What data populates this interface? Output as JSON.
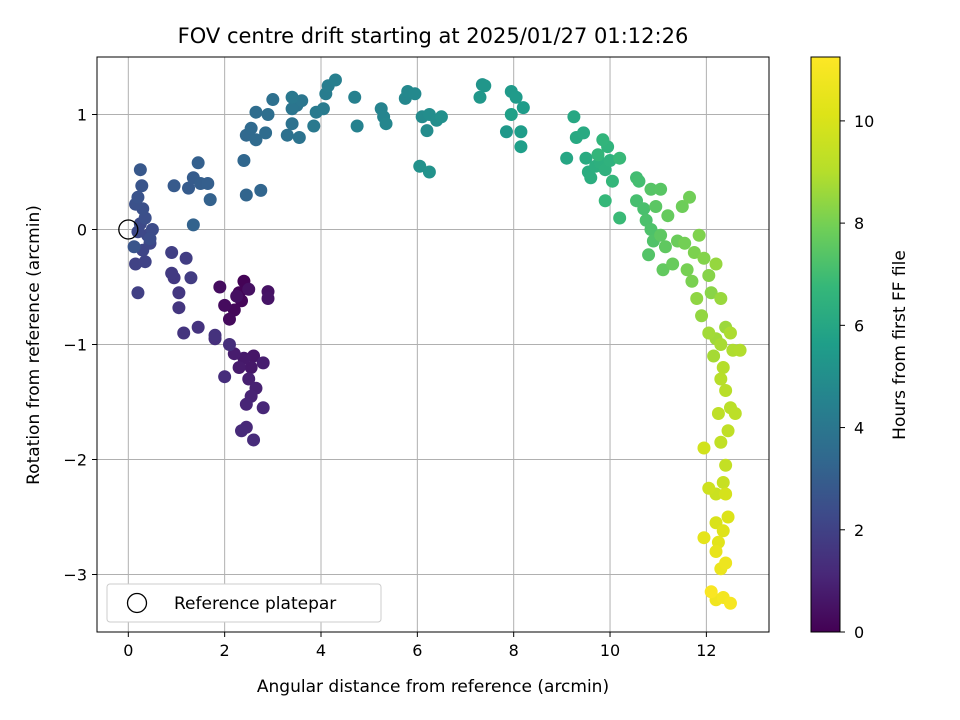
{
  "chart_data": {
    "type": "scatter",
    "title": "FOV centre drift starting at 2025/01/27 01:12:26",
    "xlabel": "Angular distance from reference (arcmin)",
    "ylabel": "Rotation from reference (arcmin)",
    "colorbar_label": "Hours from first FF file",
    "xlim": [
      -0.65,
      13.3
    ],
    "ylim": [
      -3.5,
      1.5
    ],
    "clim": [
      0,
      11.25
    ],
    "x_ticks": [
      0,
      2,
      4,
      6,
      8,
      10,
      12
    ],
    "y_ticks": [
      -3,
      -2,
      -1,
      0,
      1
    ],
    "colorbar_ticks": [
      0,
      2,
      4,
      6,
      8,
      10
    ],
    "grid": true,
    "colormap": "viridis",
    "legend": {
      "placement": "lower-left",
      "entries": [
        {
          "label": "Reference platepar",
          "marker": "open-circle"
        }
      ]
    },
    "reference_point": {
      "x": 0,
      "y": 0
    },
    "points": [
      {
        "x": 2.4,
        "y": -0.45,
        "t": 0.05
      },
      {
        "x": 2.3,
        "y": -0.55,
        "t": 0.1
      },
      {
        "x": 2.35,
        "y": -0.62,
        "t": 0.15
      },
      {
        "x": 2.2,
        "y": -0.7,
        "t": 0.2
      },
      {
        "x": 2.1,
        "y": -0.78,
        "t": 0.25
      },
      {
        "x": 2.0,
        "y": -0.66,
        "t": 0.3
      },
      {
        "x": 1.9,
        "y": -0.5,
        "t": 0.35
      },
      {
        "x": 2.25,
        "y": -0.58,
        "t": 0.4
      },
      {
        "x": 2.5,
        "y": -0.52,
        "t": 0.45
      },
      {
        "x": 2.9,
        "y": -0.54,
        "t": 0.5
      },
      {
        "x": 2.9,
        "y": -0.6,
        "t": 0.55
      },
      {
        "x": 2.6,
        "y": -1.1,
        "t": 0.6
      },
      {
        "x": 2.55,
        "y": -1.2,
        "t": 0.65
      },
      {
        "x": 2.4,
        "y": -1.12,
        "t": 0.7
      },
      {
        "x": 2.3,
        "y": -1.2,
        "t": 0.75
      },
      {
        "x": 2.2,
        "y": -1.08,
        "t": 0.8
      },
      {
        "x": 2.8,
        "y": -1.16,
        "t": 0.85
      },
      {
        "x": 2.5,
        "y": -1.3,
        "t": 0.9
      },
      {
        "x": 2.65,
        "y": -1.38,
        "t": 0.95
      },
      {
        "x": 2.55,
        "y": -1.45,
        "t": 1.0
      },
      {
        "x": 2.45,
        "y": -1.52,
        "t": 1.05
      },
      {
        "x": 2.8,
        "y": -1.55,
        "t": 1.1
      },
      {
        "x": 2.45,
        "y": -1.72,
        "t": 1.15
      },
      {
        "x": 2.35,
        "y": -1.75,
        "t": 1.2
      },
      {
        "x": 2.6,
        "y": -1.83,
        "t": 1.25
      },
      {
        "x": 2.0,
        "y": -1.28,
        "t": 1.3
      },
      {
        "x": 2.1,
        "y": -1.0,
        "t": 1.35
      },
      {
        "x": 1.8,
        "y": -0.95,
        "t": 1.4
      },
      {
        "x": 1.8,
        "y": -0.92,
        "t": 1.45
      },
      {
        "x": 1.45,
        "y": -0.85,
        "t": 1.5
      },
      {
        "x": 1.15,
        "y": -0.9,
        "t": 1.55
      },
      {
        "x": 1.05,
        "y": -0.68,
        "t": 1.6
      },
      {
        "x": 1.05,
        "y": -0.55,
        "t": 1.65
      },
      {
        "x": 0.95,
        "y": -0.42,
        "t": 1.7
      },
      {
        "x": 0.9,
        "y": -0.38,
        "t": 1.75
      },
      {
        "x": 1.3,
        "y": -0.42,
        "t": 1.8
      },
      {
        "x": 1.2,
        "y": -0.25,
        "t": 1.85
      },
      {
        "x": 0.9,
        "y": -0.2,
        "t": 1.9
      },
      {
        "x": 0.2,
        "y": -0.55,
        "t": 1.95
      },
      {
        "x": 0.15,
        "y": -0.3,
        "t": 2.0
      },
      {
        "x": 0.35,
        "y": -0.28,
        "t": 2.05
      },
      {
        "x": 0.3,
        "y": -0.18,
        "t": 2.1
      },
      {
        "x": 0.45,
        "y": -0.12,
        "t": 2.15
      },
      {
        "x": 0.4,
        "y": -0.05,
        "t": 2.2
      },
      {
        "x": 0.2,
        "y": -0.02,
        "t": 2.25
      },
      {
        "x": 0.25,
        "y": 0.05,
        "t": 2.3
      },
      {
        "x": 0.5,
        "y": 0.0,
        "t": 2.35
      },
      {
        "x": 0.45,
        "y": -0.08,
        "t": 2.4
      },
      {
        "x": 0.35,
        "y": 0.1,
        "t": 2.45
      },
      {
        "x": 0.3,
        "y": 0.18,
        "t": 2.5
      },
      {
        "x": 0.15,
        "y": 0.22,
        "t": 2.55
      },
      {
        "x": 0.2,
        "y": 0.28,
        "t": 2.6
      },
      {
        "x": 0.28,
        "y": 0.38,
        "t": 2.65
      },
      {
        "x": 0.12,
        "y": -0.15,
        "t": 2.7
      },
      {
        "x": 0.25,
        "y": 0.52,
        "t": 2.8
      },
      {
        "x": 0.95,
        "y": 0.38,
        "t": 2.85
      },
      {
        "x": 1.25,
        "y": 0.36,
        "t": 2.9
      },
      {
        "x": 1.35,
        "y": 0.45,
        "t": 2.95
      },
      {
        "x": 1.5,
        "y": 0.4,
        "t": 3.0
      },
      {
        "x": 1.65,
        "y": 0.4,
        "t": 3.05
      },
      {
        "x": 1.45,
        "y": 0.58,
        "t": 3.1
      },
      {
        "x": 1.7,
        "y": 0.26,
        "t": 3.15
      },
      {
        "x": 1.35,
        "y": 0.04,
        "t": 3.2
      },
      {
        "x": 2.45,
        "y": 0.3,
        "t": 3.25
      },
      {
        "x": 2.75,
        "y": 0.34,
        "t": 3.3
      },
      {
        "x": 2.4,
        "y": 0.6,
        "t": 3.35
      },
      {
        "x": 2.45,
        "y": 0.82,
        "t": 3.4
      },
      {
        "x": 2.55,
        "y": 0.88,
        "t": 3.45
      },
      {
        "x": 2.65,
        "y": 0.78,
        "t": 3.5
      },
      {
        "x": 2.85,
        "y": 0.84,
        "t": 3.55
      },
      {
        "x": 2.65,
        "y": 1.02,
        "t": 3.6
      },
      {
        "x": 2.9,
        "y": 1.0,
        "t": 3.65
      },
      {
        "x": 3.0,
        "y": 1.13,
        "t": 3.7
      },
      {
        "x": 3.3,
        "y": 0.82,
        "t": 3.75
      },
      {
        "x": 3.4,
        "y": 0.92,
        "t": 3.8
      },
      {
        "x": 3.55,
        "y": 0.8,
        "t": 3.85
      },
      {
        "x": 3.5,
        "y": 1.08,
        "t": 3.9
      },
      {
        "x": 3.4,
        "y": 1.05,
        "t": 3.95
      },
      {
        "x": 3.6,
        "y": 1.12,
        "t": 4.0
      },
      {
        "x": 3.4,
        "y": 1.15,
        "t": 4.05
      },
      {
        "x": 3.85,
        "y": 0.9,
        "t": 4.1
      },
      {
        "x": 3.9,
        "y": 1.02,
        "t": 4.15
      },
      {
        "x": 4.05,
        "y": 1.05,
        "t": 4.2
      },
      {
        "x": 4.1,
        "y": 1.18,
        "t": 4.25
      },
      {
        "x": 4.15,
        "y": 1.25,
        "t": 4.3
      },
      {
        "x": 4.3,
        "y": 1.3,
        "t": 4.35
      },
      {
        "x": 4.7,
        "y": 1.15,
        "t": 4.4
      },
      {
        "x": 4.75,
        "y": 0.9,
        "t": 4.45
      },
      {
        "x": 5.25,
        "y": 1.05,
        "t": 4.55
      },
      {
        "x": 5.3,
        "y": 0.98,
        "t": 4.6
      },
      {
        "x": 5.35,
        "y": 0.92,
        "t": 4.65
      },
      {
        "x": 5.75,
        "y": 1.14,
        "t": 4.7
      },
      {
        "x": 5.8,
        "y": 1.2,
        "t": 4.75
      },
      {
        "x": 5.95,
        "y": 1.18,
        "t": 4.8
      },
      {
        "x": 6.1,
        "y": 0.98,
        "t": 4.85
      },
      {
        "x": 6.2,
        "y": 0.86,
        "t": 4.9
      },
      {
        "x": 6.25,
        "y": 1.0,
        "t": 4.95
      },
      {
        "x": 6.4,
        "y": 0.95,
        "t": 5.0
      },
      {
        "x": 6.5,
        "y": 0.98,
        "t": 5.05
      },
      {
        "x": 6.05,
        "y": 0.55,
        "t": 5.1
      },
      {
        "x": 6.25,
        "y": 0.5,
        "t": 5.15
      },
      {
        "x": 7.35,
        "y": 1.26,
        "t": 5.2
      },
      {
        "x": 7.4,
        "y": 1.25,
        "t": 5.3
      },
      {
        "x": 7.3,
        "y": 1.15,
        "t": 5.35
      },
      {
        "x": 7.85,
        "y": 0.85,
        "t": 5.4
      },
      {
        "x": 7.95,
        "y": 1.2,
        "t": 5.45
      },
      {
        "x": 8.05,
        "y": 1.15,
        "t": 5.5
      },
      {
        "x": 8.2,
        "y": 1.06,
        "t": 5.55
      },
      {
        "x": 8.15,
        "y": 0.85,
        "t": 5.6
      },
      {
        "x": 8.15,
        "y": 0.72,
        "t": 5.65
      },
      {
        "x": 7.95,
        "y": 1.0,
        "t": 5.7
      },
      {
        "x": 9.1,
        "y": 0.62,
        "t": 6.0
      },
      {
        "x": 9.25,
        "y": 0.98,
        "t": 6.05
      },
      {
        "x": 9.3,
        "y": 0.8,
        "t": 6.1
      },
      {
        "x": 9.45,
        "y": 0.84,
        "t": 6.15
      },
      {
        "x": 9.5,
        "y": 0.62,
        "t": 6.2
      },
      {
        "x": 9.55,
        "y": 0.5,
        "t": 6.25
      },
      {
        "x": 9.6,
        "y": 0.45,
        "t": 6.3
      },
      {
        "x": 9.7,
        "y": 0.55,
        "t": 6.35
      },
      {
        "x": 9.8,
        "y": 0.58,
        "t": 6.4
      },
      {
        "x": 9.9,
        "y": 0.52,
        "t": 6.45
      },
      {
        "x": 10.0,
        "y": 0.6,
        "t": 6.5
      },
      {
        "x": 9.95,
        "y": 0.72,
        "t": 6.55
      },
      {
        "x": 9.85,
        "y": 0.78,
        "t": 6.6
      },
      {
        "x": 9.75,
        "y": 0.65,
        "t": 6.65
      },
      {
        "x": 10.05,
        "y": 0.42,
        "t": 6.7
      },
      {
        "x": 9.9,
        "y": 0.25,
        "t": 6.75
      },
      {
        "x": 10.2,
        "y": 0.62,
        "t": 6.8
      },
      {
        "x": 10.2,
        "y": 0.1,
        "t": 6.85
      },
      {
        "x": 10.55,
        "y": 0.45,
        "t": 7.0
      },
      {
        "x": 10.6,
        "y": 0.42,
        "t": 7.05
      },
      {
        "x": 10.55,
        "y": 0.25,
        "t": 7.1
      },
      {
        "x": 10.7,
        "y": 0.18,
        "t": 7.15
      },
      {
        "x": 10.75,
        "y": 0.08,
        "t": 7.2
      },
      {
        "x": 10.85,
        "y": 0.0,
        "t": 7.25
      },
      {
        "x": 10.9,
        "y": -0.1,
        "t": 7.3
      },
      {
        "x": 10.8,
        "y": -0.22,
        "t": 7.35
      },
      {
        "x": 10.85,
        "y": 0.35,
        "t": 7.4
      },
      {
        "x": 11.05,
        "y": 0.35,
        "t": 7.45
      },
      {
        "x": 10.95,
        "y": 0.2,
        "t": 7.5
      },
      {
        "x": 11.05,
        "y": -0.05,
        "t": 7.55
      },
      {
        "x": 11.15,
        "y": -0.15,
        "t": 7.6
      },
      {
        "x": 11.1,
        "y": -0.35,
        "t": 7.65
      },
      {
        "x": 11.2,
        "y": 0.12,
        "t": 7.7
      },
      {
        "x": 11.3,
        "y": -0.3,
        "t": 7.75
      },
      {
        "x": 11.4,
        "y": -0.1,
        "t": 7.8
      },
      {
        "x": 11.5,
        "y": 0.2,
        "t": 7.85
      },
      {
        "x": 11.65,
        "y": 0.28,
        "t": 7.9
      },
      {
        "x": 11.55,
        "y": -0.12,
        "t": 7.95
      },
      {
        "x": 11.6,
        "y": -0.35,
        "t": 8.0
      },
      {
        "x": 11.7,
        "y": -0.45,
        "t": 8.05
      },
      {
        "x": 11.75,
        "y": -0.2,
        "t": 8.1
      },
      {
        "x": 11.85,
        "y": -0.05,
        "t": 8.15
      },
      {
        "x": 11.95,
        "y": -0.25,
        "t": 8.2
      },
      {
        "x": 12.05,
        "y": -0.4,
        "t": 8.25
      },
      {
        "x": 12.1,
        "y": -0.55,
        "t": 8.3
      },
      {
        "x": 11.8,
        "y": -0.6,
        "t": 8.4
      },
      {
        "x": 11.9,
        "y": -0.75,
        "t": 8.45
      },
      {
        "x": 12.2,
        "y": -0.3,
        "t": 8.5
      },
      {
        "x": 12.3,
        "y": -0.6,
        "t": 8.55
      },
      {
        "x": 12.4,
        "y": -0.85,
        "t": 8.6
      },
      {
        "x": 12.2,
        "y": -0.95,
        "t": 8.65
      },
      {
        "x": 12.05,
        "y": -0.9,
        "t": 8.7
      },
      {
        "x": 12.15,
        "y": -1.1,
        "t": 8.75
      },
      {
        "x": 12.3,
        "y": -1.0,
        "t": 8.8
      },
      {
        "x": 12.5,
        "y": -0.9,
        "t": 8.85
      },
      {
        "x": 12.55,
        "y": -1.05,
        "t": 8.9
      },
      {
        "x": 12.7,
        "y": -1.05,
        "t": 8.95
      },
      {
        "x": 12.35,
        "y": -1.2,
        "t": 9.0
      },
      {
        "x": 12.3,
        "y": -1.3,
        "t": 9.05
      },
      {
        "x": 12.4,
        "y": -1.4,
        "t": 9.1
      },
      {
        "x": 12.5,
        "y": -1.55,
        "t": 9.15
      },
      {
        "x": 12.6,
        "y": -1.6,
        "t": 9.2
      },
      {
        "x": 12.25,
        "y": -1.6,
        "t": 9.25
      },
      {
        "x": 12.45,
        "y": -1.75,
        "t": 9.3
      },
      {
        "x": 12.3,
        "y": -1.85,
        "t": 9.35
      },
      {
        "x": 12.4,
        "y": -2.05,
        "t": 9.4
      },
      {
        "x": 12.35,
        "y": -2.2,
        "t": 9.5
      },
      {
        "x": 12.2,
        "y": -2.3,
        "t": 9.6
      },
      {
        "x": 12.05,
        "y": -2.25,
        "t": 9.7
      },
      {
        "x": 11.95,
        "y": -1.9,
        "t": 9.8
      },
      {
        "x": 12.4,
        "y": -2.3,
        "t": 9.9
      },
      {
        "x": 12.2,
        "y": -2.55,
        "t": 10.0
      },
      {
        "x": 12.45,
        "y": -2.5,
        "t": 10.1
      },
      {
        "x": 12.35,
        "y": -2.62,
        "t": 10.2
      },
      {
        "x": 12.25,
        "y": -2.72,
        "t": 10.3
      },
      {
        "x": 11.95,
        "y": -2.68,
        "t": 10.4
      },
      {
        "x": 12.2,
        "y": -2.8,
        "t": 10.5
      },
      {
        "x": 12.3,
        "y": -2.95,
        "t": 10.6
      },
      {
        "x": 12.4,
        "y": -2.9,
        "t": 10.7
      },
      {
        "x": 12.2,
        "y": -3.22,
        "t": 10.8
      },
      {
        "x": 12.35,
        "y": -3.2,
        "t": 10.9
      },
      {
        "x": 12.5,
        "y": -3.25,
        "t": 11.0
      },
      {
        "x": 12.1,
        "y": -3.15,
        "t": 11.1
      }
    ]
  }
}
